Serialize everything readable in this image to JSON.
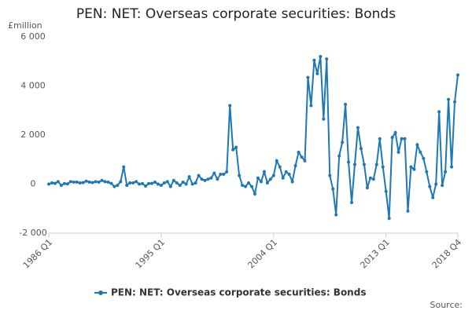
{
  "chart_data": {
    "type": "line",
    "title": "PEN: NET: Overseas corporate securities: Bonds",
    "y_label": "£million",
    "source": "Source:",
    "categories": [
      "1986 Q1",
      null,
      null,
      null,
      null,
      null,
      null,
      null,
      null,
      null,
      null,
      null,
      null,
      null,
      null,
      null,
      null,
      null,
      null,
      null,
      null,
      null,
      null,
      null,
      null,
      null,
      null,
      null,
      null,
      null,
      null,
      null,
      null,
      null,
      null,
      null,
      "1995 Q1",
      null,
      null,
      null,
      null,
      null,
      null,
      null,
      null,
      null,
      null,
      null,
      null,
      null,
      null,
      null,
      null,
      null,
      null,
      null,
      null,
      null,
      null,
      null,
      null,
      null,
      null,
      null,
      null,
      null,
      null,
      null,
      null,
      null,
      null,
      null,
      "2004 Q1",
      null,
      null,
      null,
      null,
      null,
      null,
      null,
      null,
      null,
      null,
      null,
      null,
      null,
      null,
      null,
      null,
      null,
      null,
      null,
      null,
      null,
      null,
      null,
      null,
      null,
      null,
      null,
      null,
      null,
      null,
      null,
      null,
      null,
      null,
      null,
      "2013 Q1",
      null,
      null,
      null,
      null,
      null,
      null,
      null,
      null,
      null,
      null,
      null,
      null,
      null,
      null,
      null,
      null,
      null,
      null,
      null,
      null,
      null,
      null,
      "2018 Q4"
    ],
    "series": [
      {
        "name": "PEN: NET: Overseas corporate securities: Bonds",
        "color": "#1f78b4",
        "values": [
          0,
          50,
          30,
          100,
          -50,
          20,
          10,
          100,
          80,
          80,
          50,
          60,
          120,
          80,
          60,
          100,
          80,
          150,
          100,
          80,
          30,
          -100,
          -50,
          100,
          700,
          -50,
          50,
          50,
          100,
          0,
          20,
          -80,
          20,
          30,
          80,
          0,
          -50,
          50,
          100,
          -100,
          150,
          50,
          -50,
          80,
          0,
          300,
          0,
          50,
          350,
          200,
          150,
          200,
          250,
          450,
          200,
          400,
          400,
          500,
          3200,
          1400,
          1500,
          350,
          -50,
          -100,
          50,
          -100,
          -400,
          250,
          100,
          500,
          50,
          200,
          350,
          950,
          700,
          250,
          500,
          400,
          100,
          750,
          1300,
          1100,
          950,
          4350,
          3200,
          5050,
          4500,
          5200,
          2650,
          5100,
          350,
          -200,
          -1250,
          1150,
          1700,
          3250,
          900,
          -750,
          800,
          2300,
          1450,
          800,
          -150,
          250,
          200,
          800,
          1850,
          700,
          -300,
          -1400,
          1900,
          2100,
          1300,
          1850,
          1850,
          -1100,
          700,
          600,
          1600,
          1300,
          1050,
          500,
          -100,
          -550,
          0,
          2950,
          -50,
          500,
          3450,
          700,
          3350,
          4450
        ]
      }
    ],
    "ylim": [
      -2000,
      6000
    ],
    "yticks": [
      {
        "value": -2000,
        "label": "-2 000"
      },
      0,
      {
        "value": 2000,
        "label": "2 000"
      },
      {
        "value": 4000,
        "label": "4 000"
      },
      {
        "value": 6000,
        "label": "6 000"
      }
    ],
    "grid": false
  }
}
